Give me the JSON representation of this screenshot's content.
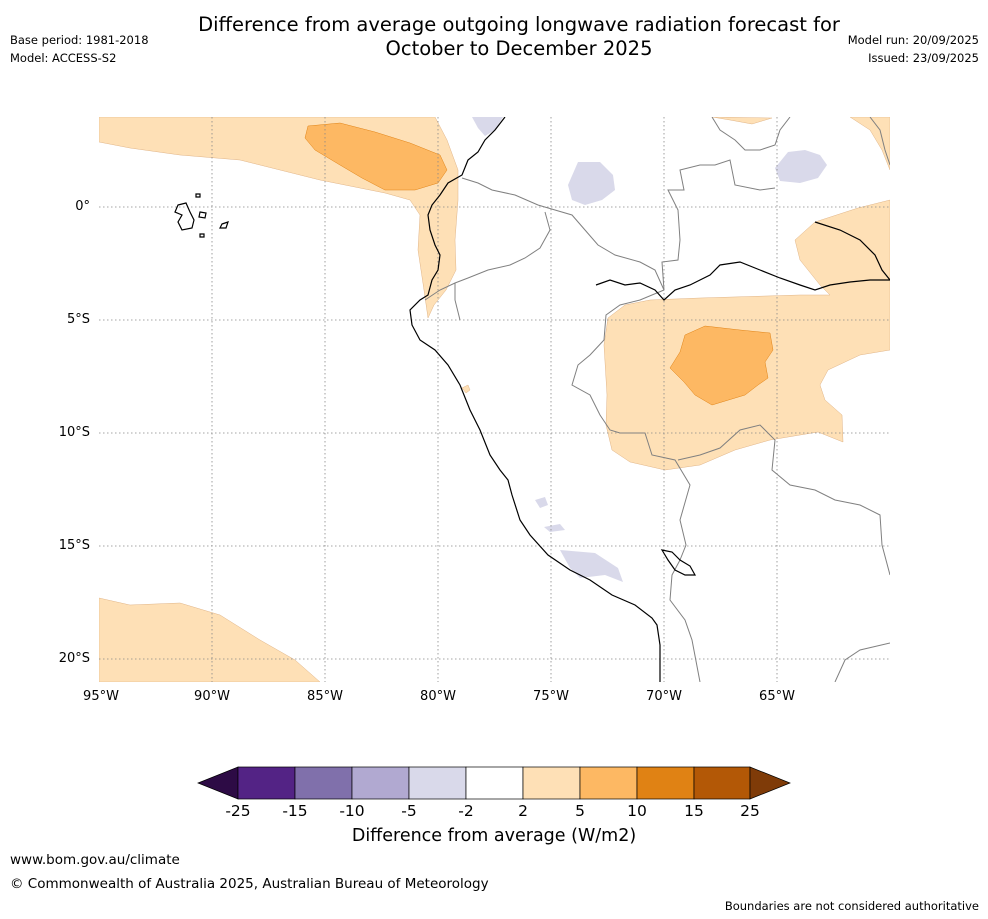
{
  "header": {
    "title_line1": "Difference from average outgoing longwave radiation forecast for",
    "title_line2": "October to December 2025",
    "base_period": "Base period: 1981-2018",
    "model": "Model: ACCESS-S2",
    "model_run": "Model run: 20/09/2025",
    "issued": "Issued: 23/09/2025"
  },
  "map": {
    "lat_labels": [
      "0°",
      "5°S",
      "10°S",
      "15°S",
      "20°S"
    ],
    "lon_labels": [
      "95°W",
      "90°W",
      "85°W",
      "80°W",
      "75°W",
      "70°W",
      "65°W"
    ]
  },
  "colorbar": {
    "title": "Difference from average (W/m2)",
    "ticks": [
      "-25",
      "-15",
      "-10",
      "-5",
      "-2",
      "2",
      "5",
      "10",
      "15",
      "25"
    ],
    "colors": {
      "below_min": "#2d0b45",
      "c1": "#532385",
      "c2": "#8070ab",
      "c3": "#b1a9d1",
      "c4": "#d9d9ea",
      "c5": "#ffffff",
      "c6": "#fee0b6",
      "c7": "#fdb863",
      "c8": "#e08214",
      "c9": "#b35806",
      "above_max": "#7f3b08"
    }
  },
  "footer": {
    "url": "www.bom.gov.au/climate",
    "copyright": "© Commonwealth of Australia 2025, Australian Bureau of Meteorology",
    "note": "Boundaries are not considered authoritative"
  }
}
